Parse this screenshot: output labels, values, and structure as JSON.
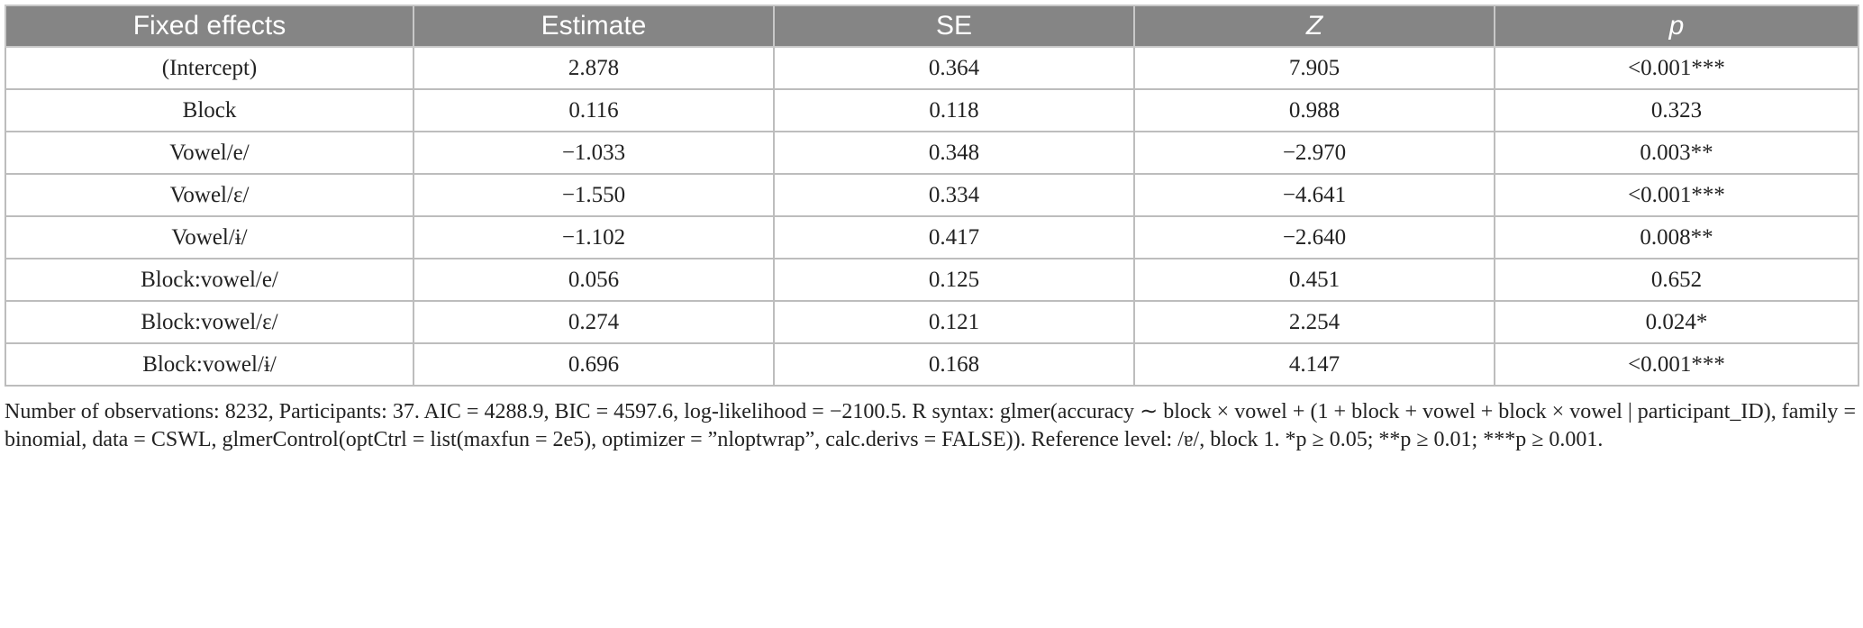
{
  "table": {
    "header": [
      "Fixed effects",
      "Estimate",
      "SE",
      "Z",
      "p"
    ],
    "rows": [
      [
        "(Intercept)",
        "2.878",
        "0.364",
        "7.905",
        "<0.001***"
      ],
      [
        "Block",
        "0.116",
        "0.118",
        "0.988",
        "0.323"
      ],
      [
        "Vowel/e/",
        "−1.033",
        "0.348",
        "−2.970",
        "0.003**"
      ],
      [
        "Vowel/ɛ/",
        "−1.550",
        "0.334",
        "−4.641",
        "<0.001***"
      ],
      [
        "Vowel/ɨ/",
        "−1.102",
        "0.417",
        "−2.640",
        "0.008**"
      ],
      [
        "Block:vowel/e/",
        "0.056",
        "0.125",
        "0.451",
        "0.652"
      ],
      [
        "Block:vowel/ɛ/",
        "0.274",
        "0.121",
        "2.254",
        "0.024*"
      ],
      [
        "Block:vowel/ɨ/",
        "0.696",
        "0.168",
        "4.147",
        "<0.001***"
      ]
    ]
  },
  "footnote": "Number of observations: 8232, Participants: 37. AIC = 4288.9, BIC = 4597.6, log-likelihood = −2100.5. R syntax: glmer(accuracy ∼ block × vowel + (1 + block + vowel + block × vowel | participant_ID), family = binomial, data = CSWL, glmerControl(optCtrl = list(maxfun = 2e5), optimizer = ”nloptwrap”, calc.derivs = FALSE)). Reference level: /ɐ/, block 1. *p ≥ 0.05; **p ≥ 0.01; ***p ≥ 0.001."
}
